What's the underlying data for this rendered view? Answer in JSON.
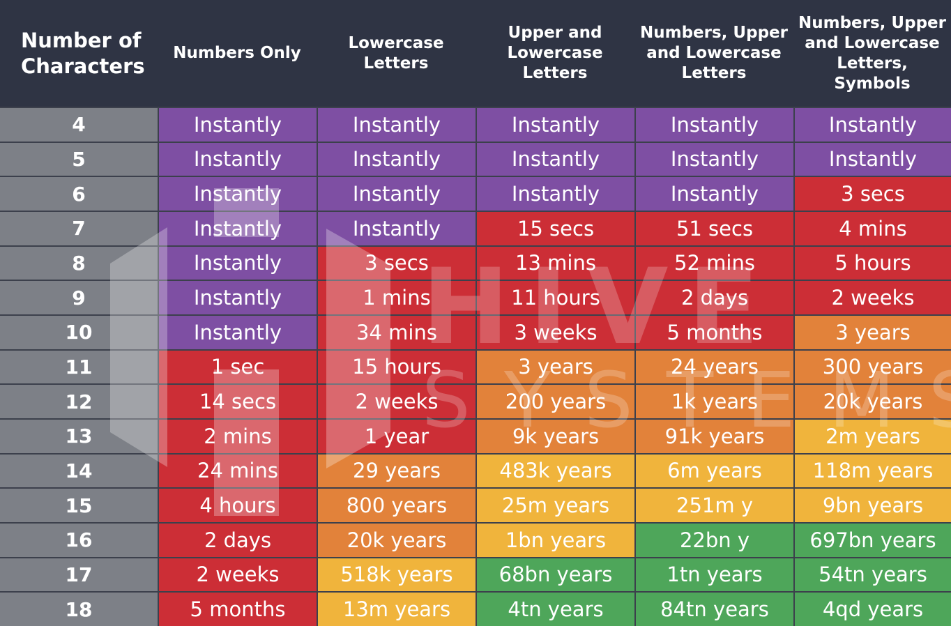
{
  "chart_data": {
    "type": "table",
    "header_first": [
      "Number of",
      "Characters"
    ],
    "columns": [
      [
        "Numbers Only"
      ],
      [
        "Lowercase",
        "Letters"
      ],
      [
        "Upper and",
        "Lowercase",
        "Letters"
      ],
      [
        "Numbers, Upper",
        "and Lowercase",
        "Letters"
      ],
      [
        "Numbers, Upper",
        "and Lowercase",
        "Letters, Symbols"
      ]
    ],
    "rows": [
      {
        "n": "4",
        "cells": [
          [
            "Instantly",
            "purple"
          ],
          [
            "Instantly",
            "purple"
          ],
          [
            "Instantly",
            "purple"
          ],
          [
            "Instantly",
            "purple"
          ],
          [
            "Instantly",
            "purple"
          ]
        ]
      },
      {
        "n": "5",
        "cells": [
          [
            "Instantly",
            "purple"
          ],
          [
            "Instantly",
            "purple"
          ],
          [
            "Instantly",
            "purple"
          ],
          [
            "Instantly",
            "purple"
          ],
          [
            "Instantly",
            "purple"
          ]
        ]
      },
      {
        "n": "6",
        "cells": [
          [
            "Instantly",
            "purple"
          ],
          [
            "Instantly",
            "purple"
          ],
          [
            "Instantly",
            "purple"
          ],
          [
            "Instantly",
            "purple"
          ],
          [
            "3 secs",
            "red"
          ]
        ]
      },
      {
        "n": "7",
        "cells": [
          [
            "Instantly",
            "purple"
          ],
          [
            "Instantly",
            "purple"
          ],
          [
            "15 secs",
            "red"
          ],
          [
            "51 secs",
            "red"
          ],
          [
            "4 mins",
            "red"
          ]
        ]
      },
      {
        "n": "8",
        "cells": [
          [
            "Instantly",
            "purple"
          ],
          [
            "3 secs",
            "red"
          ],
          [
            "13 mins",
            "red"
          ],
          [
            "52 mins",
            "red"
          ],
          [
            "5 hours",
            "red"
          ]
        ]
      },
      {
        "n": "9",
        "cells": [
          [
            "Instantly",
            "purple"
          ],
          [
            "1 mins",
            "red"
          ],
          [
            "11 hours",
            "red"
          ],
          [
            "2 days",
            "red"
          ],
          [
            "2 weeks",
            "red"
          ]
        ]
      },
      {
        "n": "10",
        "cells": [
          [
            "Instantly",
            "purple"
          ],
          [
            "34 mins",
            "red"
          ],
          [
            "3 weeks",
            "red"
          ],
          [
            "5 months",
            "red"
          ],
          [
            "3 years",
            "orange"
          ]
        ]
      },
      {
        "n": "11",
        "cells": [
          [
            "1 sec",
            "red"
          ],
          [
            "15 hours",
            "red"
          ],
          [
            "3 years",
            "orange"
          ],
          [
            "24 years",
            "orange"
          ],
          [
            "300 years",
            "orange"
          ]
        ]
      },
      {
        "n": "12",
        "cells": [
          [
            "14 secs",
            "red"
          ],
          [
            "2 weeks",
            "red"
          ],
          [
            "200 years",
            "orange"
          ],
          [
            "1k years",
            "orange"
          ],
          [
            "20k years",
            "orange"
          ]
        ]
      },
      {
        "n": "13",
        "cells": [
          [
            "2 mins",
            "red"
          ],
          [
            "1 year",
            "red"
          ],
          [
            "9k years",
            "orange"
          ],
          [
            "91k years",
            "orange"
          ],
          [
            "2m years",
            "yellow"
          ]
        ]
      },
      {
        "n": "14",
        "cells": [
          [
            "24 mins",
            "red"
          ],
          [
            "29 years",
            "orange"
          ],
          [
            "483k years",
            "yellow"
          ],
          [
            "6m years",
            "yellow"
          ],
          [
            "118m years",
            "yellow"
          ]
        ]
      },
      {
        "n": "15",
        "cells": [
          [
            "4 hours",
            "red"
          ],
          [
            "800 years",
            "orange"
          ],
          [
            "25m years",
            "yellow"
          ],
          [
            "251m y",
            "yellow"
          ],
          [
            "9bn years",
            "yellow"
          ]
        ]
      },
      {
        "n": "16",
        "cells": [
          [
            "2 days",
            "red"
          ],
          [
            "20k years",
            "orange"
          ],
          [
            "1bn years",
            "yellow"
          ],
          [
            "22bn y",
            "green"
          ],
          [
            "697bn years",
            "green"
          ]
        ]
      },
      {
        "n": "17",
        "cells": [
          [
            "2 weeks",
            "red"
          ],
          [
            "518k years",
            "yellow"
          ],
          [
            "68bn years",
            "green"
          ],
          [
            "1tn years",
            "green"
          ],
          [
            "54tn years",
            "green"
          ]
        ]
      },
      {
        "n": "18",
        "cells": [
          [
            "5 months",
            "red"
          ],
          [
            "13m years",
            "yellow"
          ],
          [
            "4tn years",
            "green"
          ],
          [
            "84tn years",
            "green"
          ],
          [
            "4qd years",
            "green"
          ]
        ]
      }
    ],
    "colors": {
      "purple": "#7e4fa3",
      "red": "#cc2e36",
      "orange": "#e2823a",
      "yellow": "#f0b43c",
      "green": "#4ea65a",
      "header_bg": "#2f3444",
      "rowlabel_bg": "#7d8087"
    },
    "watermark": [
      "HIVE",
      "SYSTEMS"
    ]
  }
}
